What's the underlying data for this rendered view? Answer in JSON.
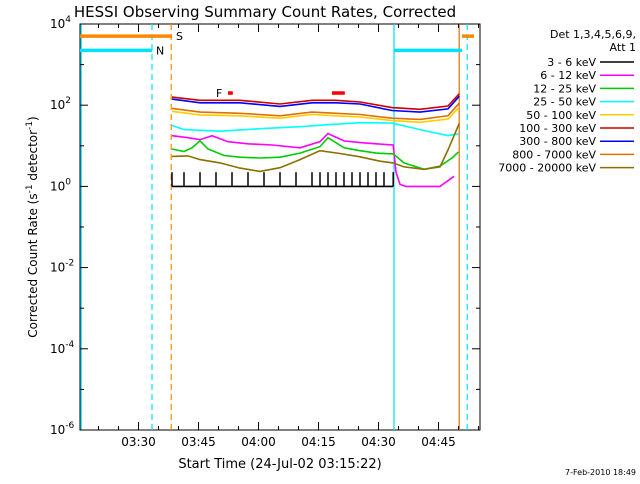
{
  "chart_data": {
    "type": "line",
    "title": "HESSI Observing Summary Count Rates, Corrected",
    "xlabel": "Start Time (24-Jul-02 03:15:22)",
    "ylabel_main": "Corrected Count Rate (s",
    "ylabel_sup1": "-1",
    "ylabel_mid": " detector",
    "ylabel_sup2": "-1",
    "ylabel_end": ")",
    "footer": "7-Feb-2010 18:49",
    "x_unit": "minutes since 03:15:22",
    "xlim": [
      0,
      100
    ],
    "ylim_log10": [
      -6,
      4
    ],
    "xticks": [
      {
        "t": 14.63,
        "label": "03:30"
      },
      {
        "t": 29.63,
        "label": "03:45"
      },
      {
        "t": 44.63,
        "label": "04:00"
      },
      {
        "t": 59.63,
        "label": "04:15"
      },
      {
        "t": 74.63,
        "label": "04:30"
      },
      {
        "t": 89.63,
        "label": "04:45"
      }
    ],
    "yticks": [
      {
        "exp": -6,
        "base": "10",
        "sup": "-6"
      },
      {
        "exp": -4,
        "base": "10",
        "sup": "-4"
      },
      {
        "exp": -2,
        "base": "10",
        "sup": "-2"
      },
      {
        "exp": 0,
        "base": "10",
        "sup": "0"
      },
      {
        "exp": 2,
        "base": "10",
        "sup": "2"
      },
      {
        "exp": 4,
        "base": "10",
        "sup": "4"
      }
    ],
    "legend": {
      "header1": "Det 1,3,4,5,6,9,",
      "header2": "Att 1",
      "placement": "right",
      "entries": [
        {
          "label": "3 - 6 keV",
          "color": "#000000"
        },
        {
          "label": "6 - 12 keV",
          "color": "#ff00ff"
        },
        {
          "label": "12 - 25 keV",
          "color": "#00cc00"
        },
        {
          "label": "25 - 50 keV",
          "color": "#00ffff"
        },
        {
          "label": "50 - 100 keV",
          "color": "#ffcc00"
        },
        {
          "label": "100 - 300 keV",
          "color": "#cc0000"
        },
        {
          "label": "300 - 800 keV",
          "color": "#0000ff"
        },
        {
          "label": "800 - 7000 keV",
          "color": "#e07000"
        },
        {
          "label": "7000 - 20000 keV",
          "color": "#8b7000"
        }
      ]
    },
    "flag_bars": [
      {
        "label": "S",
        "color": "#ff8800",
        "segments": [
          [
            0,
            23.0
          ],
          [
            95.5,
            98.5
          ]
        ],
        "y_log10": 3.7
      },
      {
        "label": "N",
        "color": "#00e0ff",
        "segments": [
          [
            0,
            18.0
          ],
          [
            78.5,
            95.5
          ]
        ],
        "y_log10": 3.35
      },
      {
        "label": "F",
        "color": "#ff0000",
        "segments": [
          [
            37.0,
            38.2
          ],
          [
            63.0,
            66.2
          ]
        ],
        "y_log10": 2.3
      }
    ],
    "event_lines": [
      {
        "t": 18.0,
        "color": "#00e0ff",
        "dash": true
      },
      {
        "t": 22.8,
        "color": "#ff8800",
        "dash": true
      },
      {
        "t": 0.3,
        "color": "#00e0ff",
        "dash": false
      },
      {
        "t": 78.5,
        "color": "#00e0ff",
        "dash": false
      },
      {
        "t": 94.8,
        "color": "#e07000",
        "dash": false
      },
      {
        "t": 96.8,
        "color": "#00e0ff",
        "dash": true
      }
    ],
    "series": [
      {
        "name": "100 - 300 keV",
        "color": "#cc0000",
        "x": [
          23,
          30,
          40,
          50,
          58,
          64,
          70,
          78,
          85,
          92,
          94.8
        ],
        "y_log10": [
          2.2,
          2.12,
          2.12,
          2.03,
          2.12,
          2.12,
          2.08,
          1.94,
          1.9,
          1.98,
          2.28
        ]
      },
      {
        "name": "300 - 800 keV",
        "color": "#0000ff",
        "x": [
          23,
          30,
          40,
          50,
          58,
          64,
          70,
          78,
          85,
          92,
          94.8
        ],
        "y_log10": [
          2.15,
          2.06,
          2.06,
          1.97,
          2.06,
          2.06,
          2.03,
          1.87,
          1.83,
          1.91,
          2.22
        ]
      },
      {
        "name": "800 - 7000 keV",
        "color": "#e07000",
        "x": [
          23,
          30,
          40,
          50,
          58,
          64,
          70,
          78,
          85,
          92,
          94.8
        ],
        "y_log10": [
          1.92,
          1.83,
          1.8,
          1.74,
          1.83,
          1.8,
          1.77,
          1.68,
          1.65,
          1.74,
          2.05
        ]
      },
      {
        "name": "50 - 100 keV",
        "color": "#ffcc00",
        "x": [
          23,
          30,
          40,
          50,
          58,
          64,
          70,
          78,
          85,
          92,
          94.8
        ],
        "y_log10": [
          1.85,
          1.76,
          1.74,
          1.68,
          1.77,
          1.74,
          1.71,
          1.62,
          1.58,
          1.66,
          1.95
        ]
      },
      {
        "name": "25 - 50 keV",
        "color": "#00ffff",
        "x": [
          23,
          26,
          35,
          45,
          55,
          62,
          70,
          78,
          85,
          92,
          94.8
        ],
        "y_log10": [
          1.5,
          1.4,
          1.36,
          1.42,
          1.47,
          1.52,
          1.57,
          1.56,
          1.4,
          1.25,
          1.3
        ]
      },
      {
        "name": "6 - 12 keV",
        "color": "#ff00ff",
        "x": [
          23,
          27,
          30,
          33,
          37,
          42,
          48,
          55,
          60,
          62,
          66,
          70,
          74,
          78.3,
          79,
          80,
          81.5,
          83,
          90,
          93.5
        ],
        "y_log10": [
          1.25,
          1.2,
          1.15,
          1.25,
          1.1,
          1.05,
          1.02,
          0.95,
          1.1,
          1.3,
          1.12,
          1.08,
          1.05,
          1.02,
          0.35,
          0.05,
          0.0,
          0.0,
          0.0,
          0.25
        ]
      },
      {
        "name": "12 - 25 keV",
        "color": "#00cc00",
        "x": [
          23,
          26,
          28,
          30,
          32,
          36,
          40,
          45,
          50,
          55,
          60,
          62,
          66,
          70,
          74,
          78.3,
          81,
          86,
          90,
          93,
          94.6
        ],
        "y_log10": [
          0.92,
          0.86,
          0.95,
          1.12,
          0.92,
          0.76,
          0.72,
          0.7,
          0.72,
          0.82,
          0.98,
          1.2,
          0.95,
          0.88,
          0.82,
          0.8,
          0.58,
          0.42,
          0.5,
          0.7,
          0.85
        ]
      },
      {
        "name": "7000 - 20000 keV",
        "color": "#8b7000",
        "x": [
          23,
          27,
          30,
          35,
          40,
          45,
          50,
          55,
          60,
          65,
          70,
          75,
          78.3,
          81,
          86,
          90,
          92,
          94.8
        ],
        "y_log10": [
          0.74,
          0.75,
          0.66,
          0.58,
          0.45,
          0.37,
          0.46,
          0.66,
          0.88,
          0.81,
          0.73,
          0.62,
          0.58,
          0.48,
          0.42,
          0.48,
          0.9,
          1.55
        ]
      },
      {
        "name": "3 - 6 keV",
        "color": "#000000",
        "x": [
          23,
          26,
          30,
          34,
          38,
          42,
          46,
          50,
          54,
          58,
          60,
          62,
          64,
          66,
          68,
          70,
          72,
          74,
          76,
          78.3
        ],
        "y_log10": [
          0.0,
          0.0,
          0.0,
          0.0,
          0.0,
          0.0,
          0.0,
          0.0,
          0.0,
          0.0,
          0.0,
          0.0,
          0.0,
          0.0,
          0.0,
          0.0,
          0.0,
          0.0,
          0.0,
          0.0
        ],
        "spikes_up_log10": [
          0.35,
          0.35,
          0.35,
          0.35,
          0.35,
          0.35,
          0.35,
          0.35,
          0.35,
          0.35,
          0.35,
          0.35,
          0.35,
          0.35,
          0.35,
          0.35,
          0.35,
          0.35,
          0.35,
          0.35
        ]
      }
    ]
  }
}
